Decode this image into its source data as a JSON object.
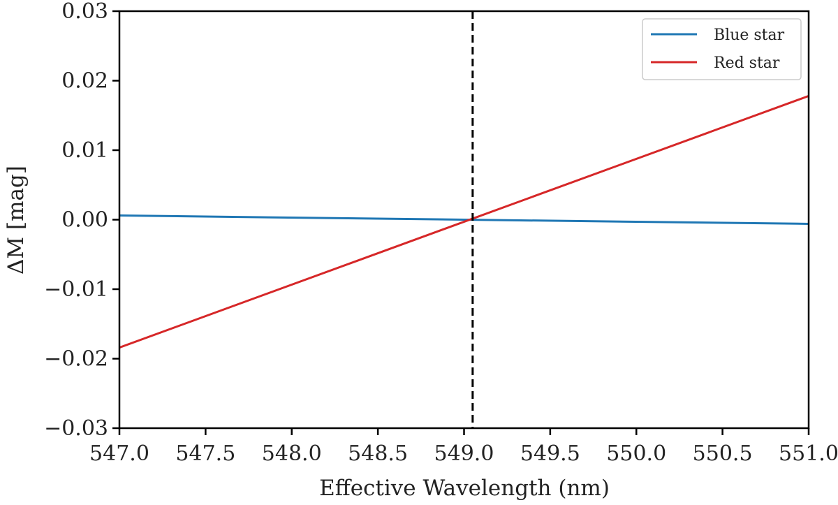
{
  "chart_data": {
    "type": "line",
    "title": "",
    "xlabel": "Effective Wavelength (nm)",
    "ylabel": "ΔM [mag]",
    "xlim": [
      547.0,
      551.0
    ],
    "ylim": [
      -0.03,
      0.03
    ],
    "x_ticks": [
      "547.0",
      "547.5",
      "548.0",
      "548.5",
      "549.0",
      "549.5",
      "550.0",
      "550.5",
      "551.0"
    ],
    "y_ticks": [
      "−0.03",
      "−0.02",
      "−0.01",
      "0.00",
      "0.01",
      "0.02",
      "0.03"
    ],
    "x_tick_values": [
      547.0,
      547.5,
      548.0,
      548.5,
      549.0,
      549.5,
      550.0,
      550.5,
      551.0
    ],
    "y_tick_values": [
      -0.03,
      -0.02,
      -0.01,
      0.0,
      0.01,
      0.02,
      0.03
    ],
    "grid": false,
    "legend_position": "top-right",
    "series": [
      {
        "name": "Blue star",
        "color": "#1f77b4",
        "x": [
          547.0,
          551.0
        ],
        "y": [
          0.0006,
          -0.0006
        ]
      },
      {
        "name": "Red star",
        "color": "#d62728",
        "x": [
          547.0,
          551.0
        ],
        "y": [
          -0.0184,
          0.0178
        ]
      }
    ],
    "reference_line": {
      "orientation": "vertical",
      "x": 549.05,
      "style": "dashed",
      "color": "#000000"
    }
  }
}
